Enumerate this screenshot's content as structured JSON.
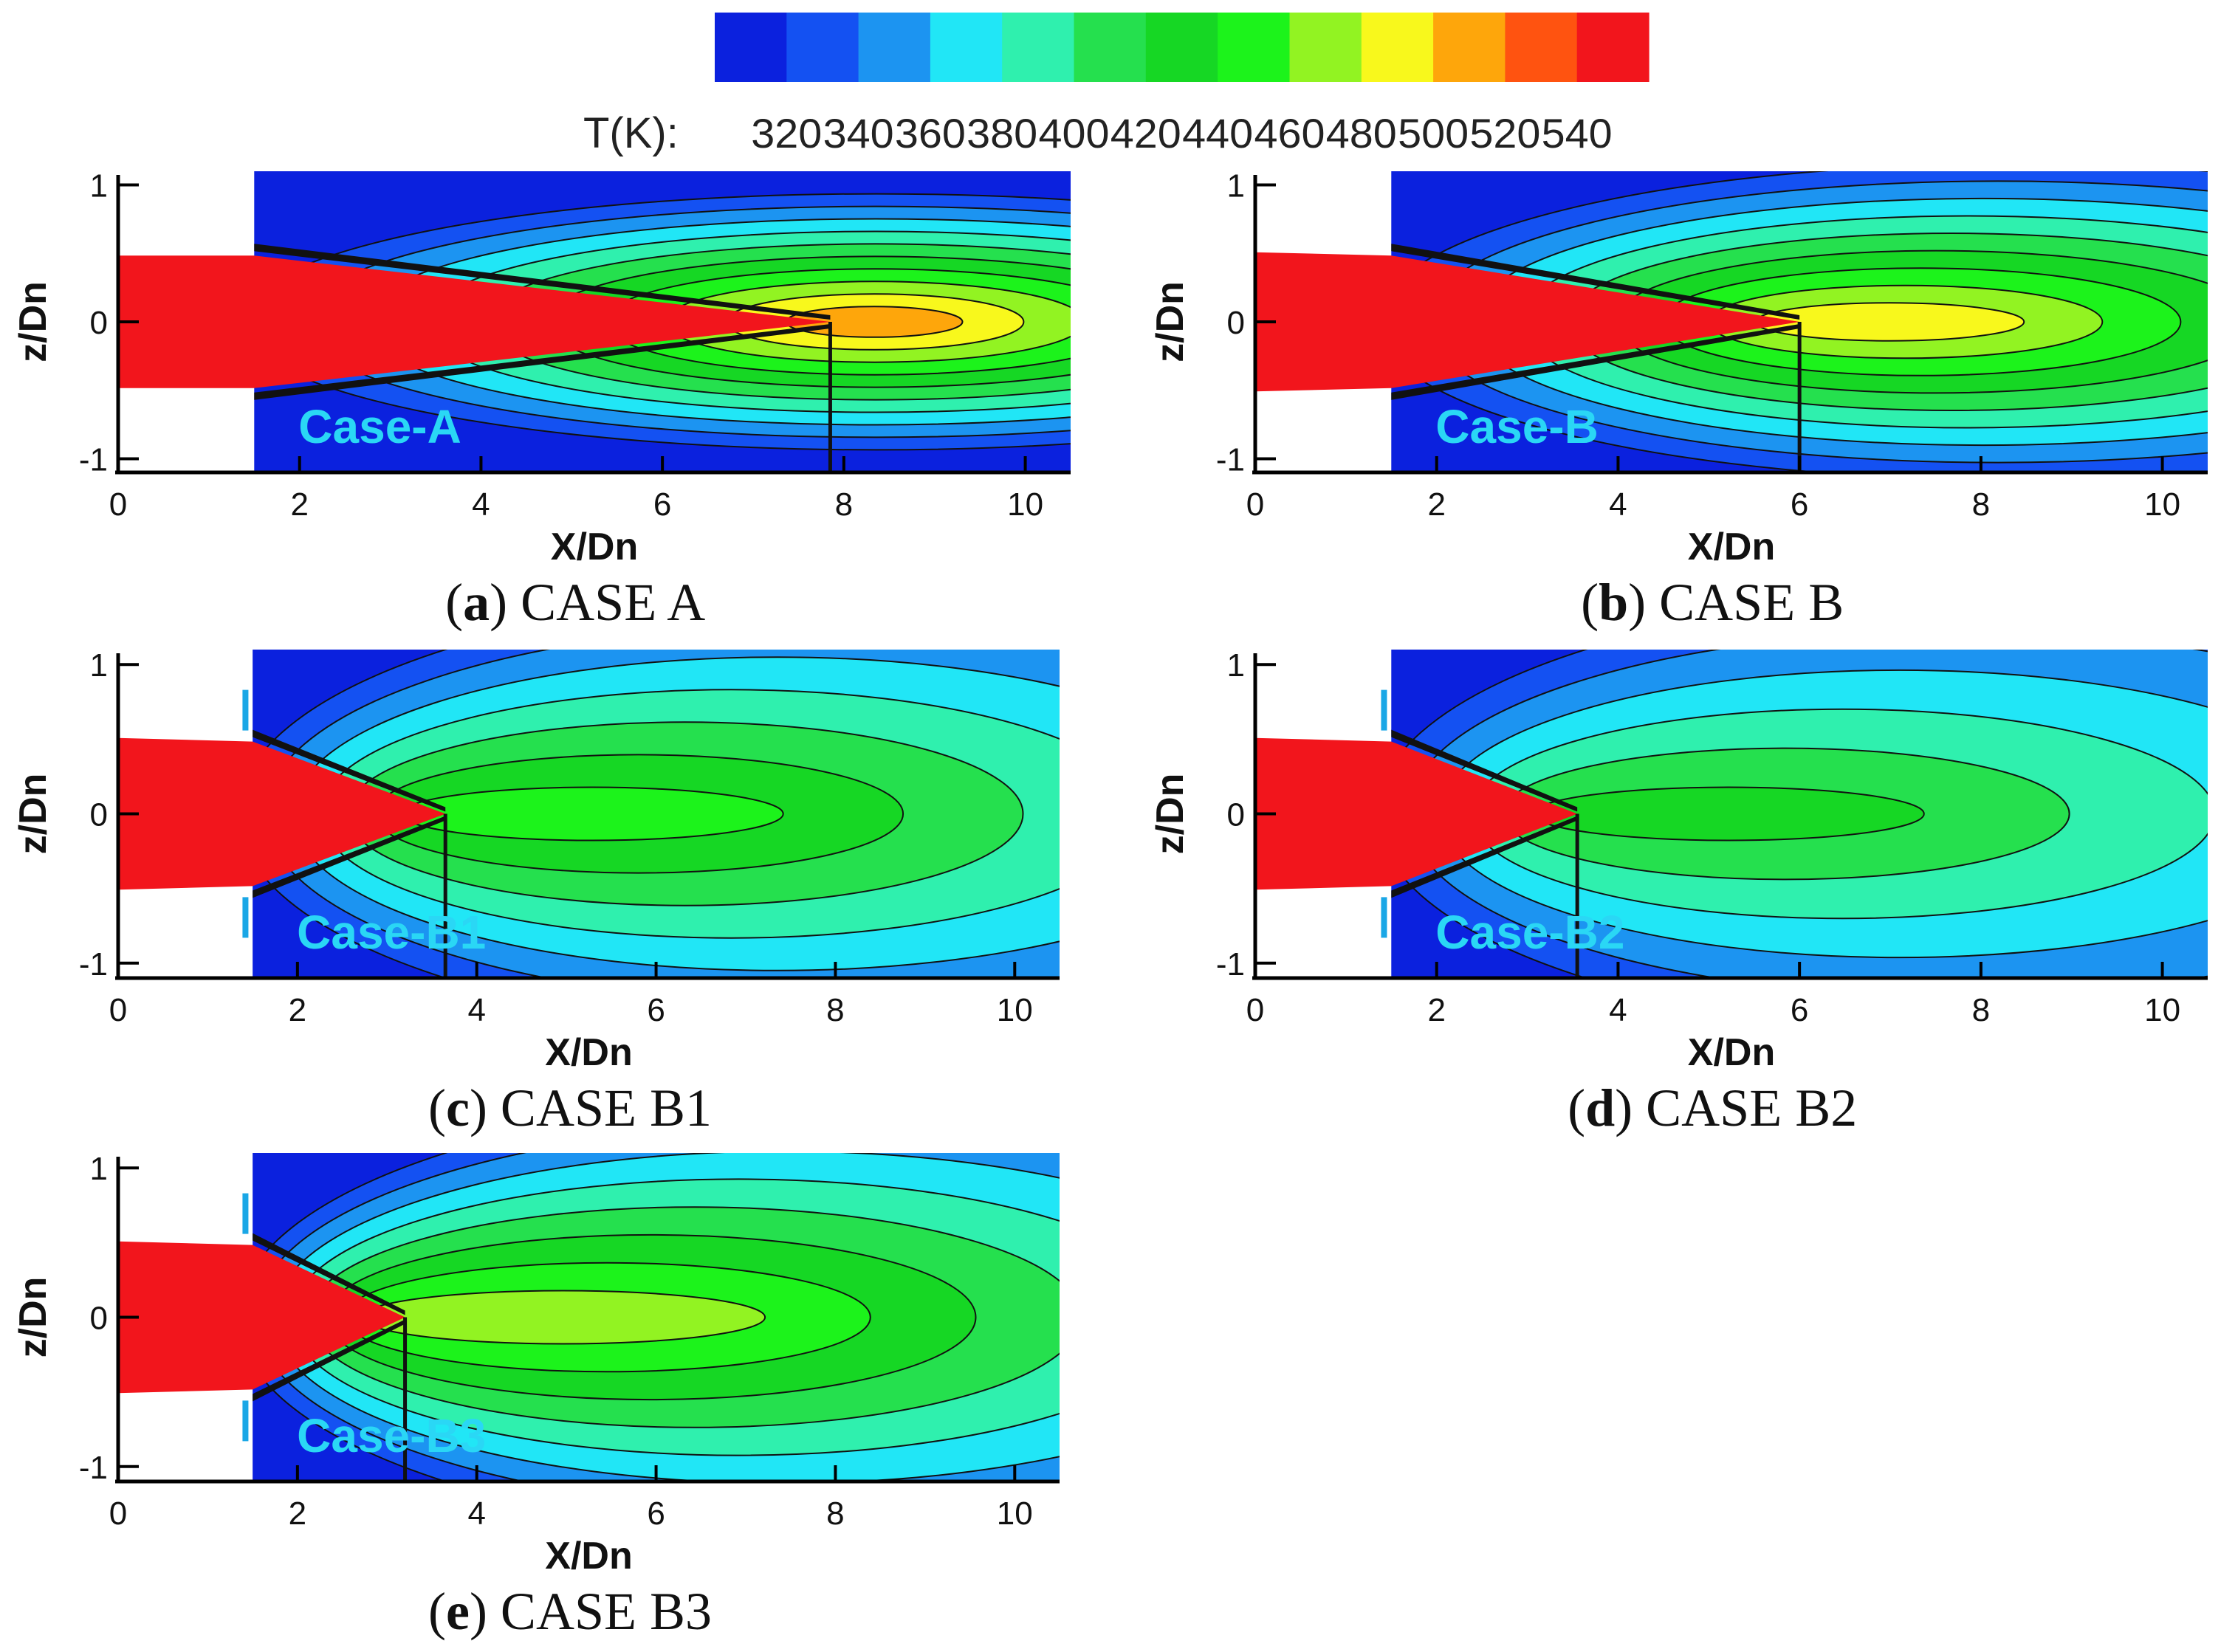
{
  "colorbar": {
    "label": "T(K):",
    "ticks": [
      "320",
      "340",
      "360",
      "380",
      "400",
      "420",
      "440",
      "460",
      "480",
      "500",
      "520",
      "540"
    ],
    "colors": [
      "#0b21de",
      "#1451f2",
      "#1c94f1",
      "#21e6f6",
      "#2ff0ae",
      "#25e04e",
      "#16d724",
      "#1cf31b",
      "#92f322",
      "#f8f81c",
      "#fea60b",
      "#ff5310",
      "#f2151c"
    ]
  },
  "chart_data": [
    {
      "type": "heatmap",
      "panel": "a",
      "caption_letter": "a",
      "caption_text": "CASE A",
      "case_label": "Case-A",
      "xlabel": "X/Dn",
      "ylabel": "z/Dn",
      "xlim": [
        0,
        10.5
      ],
      "ylim": [
        -1.1,
        1.1
      ],
      "xticks": [
        "0",
        "2",
        "4",
        "6",
        "8",
        "10"
      ],
      "yticks": [
        "-1",
        "0",
        "1"
      ],
      "nozzle_exit_x": 1.5,
      "core_length_x": 7.85,
      "jet_spread": "narrow",
      "has_injectors": false,
      "max_temperature_core_K": 540,
      "peak_downstream_K": 500
    },
    {
      "type": "heatmap",
      "panel": "b",
      "caption_letter": "b",
      "caption_text": "CASE B",
      "case_label": "Case-B",
      "xlabel": "X/Dn",
      "ylabel": "z/Dn",
      "xlim": [
        0,
        10.5
      ],
      "ylim": [
        -1.1,
        1.1
      ],
      "xticks": [
        "0",
        "2",
        "4",
        "6",
        "8",
        "10"
      ],
      "yticks": [
        "-1",
        "0",
        "1"
      ],
      "nozzle_exit_x": 1.5,
      "core_length_x": 6.0,
      "jet_spread": "moderate",
      "has_injectors": false,
      "max_temperature_core_K": 540,
      "peak_downstream_K": 480
    },
    {
      "type": "heatmap",
      "panel": "c",
      "caption_letter": "c",
      "caption_text": "CASE B1",
      "case_label": "Case-B1",
      "xlabel": "X/Dn",
      "ylabel": "z/Dn",
      "xlim": [
        0,
        10.5
      ],
      "ylim": [
        -1.1,
        1.1
      ],
      "xticks": [
        "0",
        "2",
        "4",
        "6",
        "8",
        "10"
      ],
      "yticks": [
        "-1",
        "0",
        "1"
      ],
      "nozzle_exit_x": 1.5,
      "core_length_x": 3.65,
      "jet_spread": "wide",
      "has_injectors": true,
      "max_temperature_core_K": 540,
      "peak_downstream_K": 440
    },
    {
      "type": "heatmap",
      "panel": "d",
      "caption_letter": "d",
      "caption_text": "CASE B2",
      "case_label": "Case-B2",
      "xlabel": "X/Dn",
      "ylabel": "z/Dn",
      "xlim": [
        0,
        10.5
      ],
      "ylim": [
        -1.1,
        1.1
      ],
      "xticks": [
        "0",
        "2",
        "4",
        "6",
        "8",
        "10"
      ],
      "yticks": [
        "-1",
        "0",
        "1"
      ],
      "nozzle_exit_x": 1.5,
      "core_length_x": 3.55,
      "jet_spread": "wide",
      "has_injectors": true,
      "max_temperature_core_K": 540,
      "peak_downstream_K": 420
    },
    {
      "type": "heatmap",
      "panel": "e",
      "caption_letter": "e",
      "caption_text": "CASE B3",
      "case_label": "Case-B3",
      "xlabel": "X/Dn",
      "ylabel": "z/Dn",
      "xlim": [
        0,
        10.5
      ],
      "ylim": [
        -1.1,
        1.1
      ],
      "xticks": [
        "0",
        "2",
        "4",
        "6",
        "8",
        "10"
      ],
      "yticks": [
        "-1",
        "0",
        "1"
      ],
      "nozzle_exit_x": 1.5,
      "core_length_x": 3.2,
      "jet_spread": "wide",
      "has_injectors": true,
      "max_temperature_core_K": 540,
      "peak_downstream_K": 460
    }
  ]
}
